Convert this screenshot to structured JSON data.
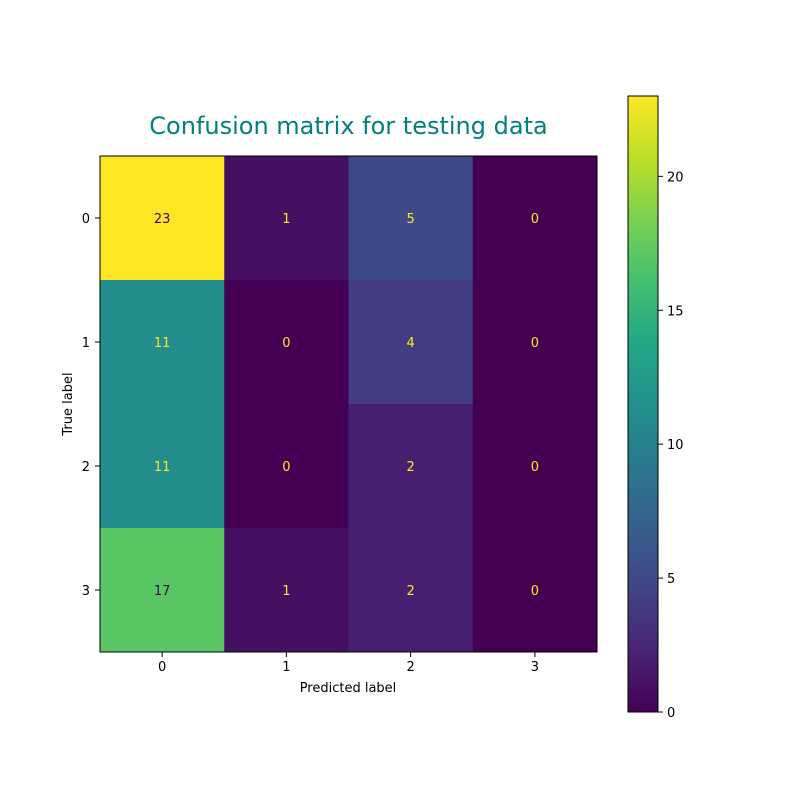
{
  "chart_data": {
    "type": "heatmap",
    "title": "Confusion matrix for testing data",
    "xlabel": "Predicted label",
    "ylabel": "True label",
    "x_categories": [
      "0",
      "1",
      "2",
      "3"
    ],
    "y_categories": [
      "0",
      "1",
      "2",
      "3"
    ],
    "values": [
      [
        23,
        1,
        5,
        0
      ],
      [
        11,
        0,
        4,
        0
      ],
      [
        11,
        0,
        2,
        0
      ],
      [
        17,
        1,
        2,
        0
      ]
    ],
    "colormap": "viridis",
    "vmin": 0,
    "vmax": 23,
    "colorbar_ticks": [
      0,
      5,
      10,
      15,
      20
    ],
    "colors": {
      "title": "#008080",
      "text_on_dark": "#fde725",
      "text_on_light": "#440154"
    }
  }
}
